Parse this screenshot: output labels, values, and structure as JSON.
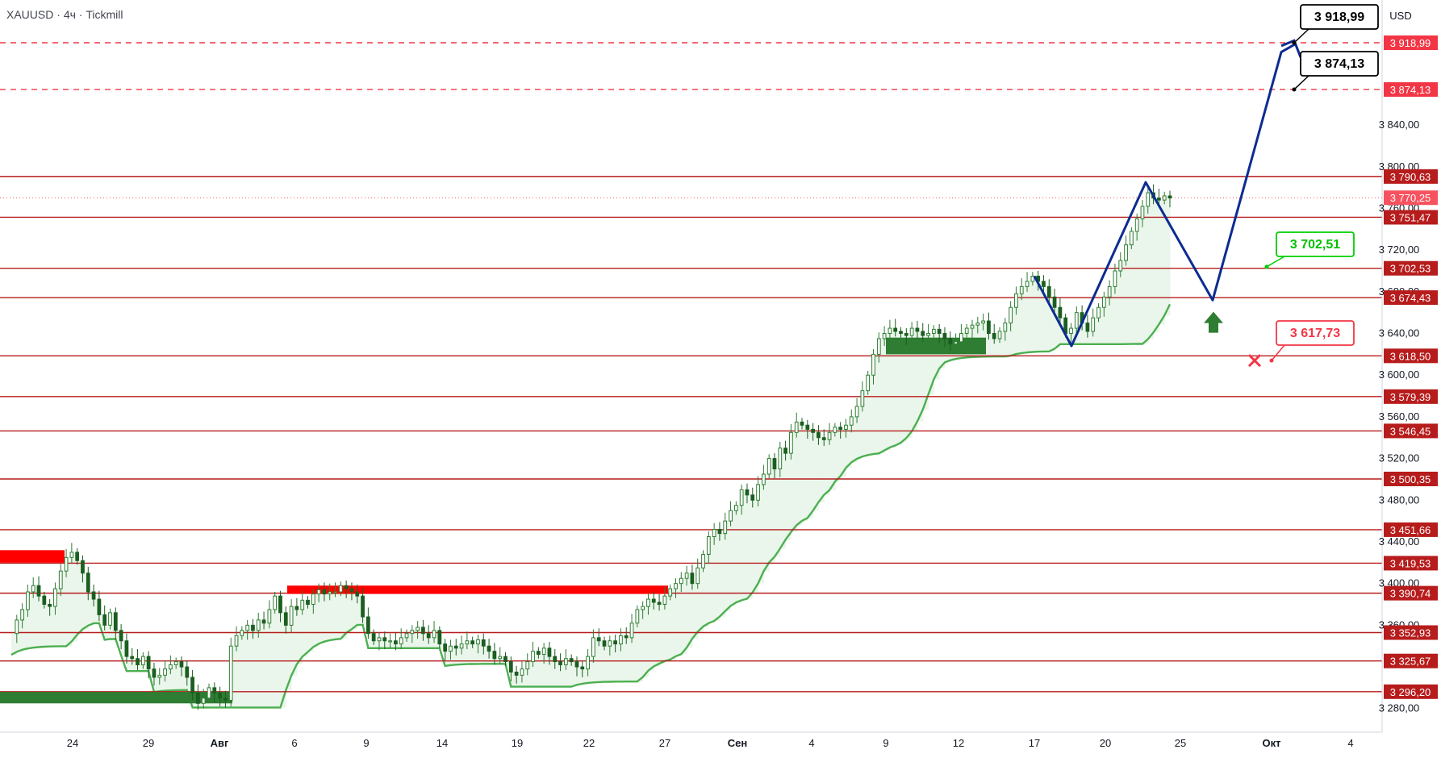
{
  "header": {
    "symbol": "XAUUSD",
    "sep1": "·",
    "timeframe": "4ч",
    "sep2": "·",
    "broker": "Tickmill"
  },
  "currency": "USD",
  "colors": {
    "level_line": "#b71c1c",
    "target_line": "#f23645",
    "candle": "#2e7d32",
    "candle_alt": "#1b5e20",
    "trail_up": "#4caf50",
    "trail_down": "#f23645",
    "zone_green": "#2e7d32",
    "zone_red": "#ff0000",
    "path": "#0d2c91",
    "buy_arrow": "#2e7d32",
    "stop_mark": "#f23645"
  },
  "chart_data": {
    "type": "line",
    "title": "",
    "ylim": [
      3262,
      3960
    ],
    "y_ticks": [
      "3 280,00",
      "3 360,00",
      "3 400,00",
      "3 440,00",
      "3 480,00",
      "3 520,00",
      "3 560,00",
      "3 600,00",
      "3 640,00",
      "3 680,00",
      "3 720,00",
      "3 760,00",
      "3 800,00",
      "3 840,00"
    ],
    "x_ticks": [
      "24",
      "29",
      "Авг",
      "6",
      "9",
      "14",
      "19",
      "22",
      "27",
      "Сен",
      "4",
      "9",
      "12",
      "17",
      "20",
      "25",
      "Окт",
      "4"
    ],
    "levels": [
      {
        "value": 3790.63,
        "label": "3 790,63"
      },
      {
        "value": 3751.47,
        "label": "3 751,47"
      },
      {
        "value": 3702.53,
        "label": "3 702,53"
      },
      {
        "value": 3674.43,
        "label": "3 674,43"
      },
      {
        "value": 3618.5,
        "label": "3 618,50"
      },
      {
        "value": 3579.39,
        "label": "3 579,39"
      },
      {
        "value": 3546.45,
        "label": "3 546,45"
      },
      {
        "value": 3500.35,
        "label": "3 500,35"
      },
      {
        "value": 3451.66,
        "label": "3 451,66"
      },
      {
        "value": 3419.53,
        "label": "3 419,53"
      },
      {
        "value": 3390.74,
        "label": "3 390,74"
      },
      {
        "value": 3352.93,
        "label": "3 352,93"
      },
      {
        "value": 3325.67,
        "label": "3 325,67"
      },
      {
        "value": 3296.2,
        "label": "3 296,20"
      }
    ],
    "targets": [
      {
        "value": 3918.99,
        "label": "3 918,99"
      },
      {
        "value": 3874.13,
        "label": "3 874,13"
      }
    ],
    "current_price": {
      "value": 3770.25,
      "label": "3 770,25"
    },
    "callouts": [
      {
        "name": "target-1",
        "label": "3 918,99"
      },
      {
        "name": "target-2",
        "label": "3 874,13"
      },
      {
        "name": "entry",
        "label": "3 702,51"
      },
      {
        "name": "stop",
        "label": "3 617,73"
      }
    ],
    "close_series": [
      3352,
      3365,
      3375,
      3392,
      3398,
      3388,
      3380,
      3378,
      3395,
      3412,
      3425,
      3430,
      3422,
      3410,
      3392,
      3385,
      3370,
      3360,
      3372,
      3355,
      3345,
      3330,
      3328,
      3322,
      3330,
      3318,
      3310,
      3312,
      3318,
      3322,
      3325,
      3320,
      3310,
      3295,
      3285,
      3290,
      3300,
      3295,
      3290,
      3288,
      3340,
      3350,
      3355,
      3360,
      3355,
      3365,
      3362,
      3375,
      3388,
      3372,
      3360,
      3378,
      3375,
      3384,
      3380,
      3390,
      3394,
      3390,
      3392,
      3392,
      3398,
      3395,
      3392,
      3388,
      3368,
      3352,
      3345,
      3348,
      3345,
      3345,
      3342,
      3348,
      3352,
      3355,
      3358,
      3352,
      3348,
      3355,
      3342,
      3335,
      3340,
      3338,
      3342,
      3345,
      3342,
      3346,
      3340,
      3335,
      3328,
      3330,
      3325,
      3315,
      3312,
      3318,
      3325,
      3335,
      3332,
      3338,
      3330,
      3325,
      3322,
      3328,
      3325,
      3320,
      3318,
      3330,
      3348,
      3345,
      3340,
      3345,
      3342,
      3350,
      3348,
      3362,
      3375,
      3378,
      3385,
      3382,
      3380,
      3388,
      3395,
      3400,
      3405,
      3410,
      3400,
      3415,
      3428,
      3445,
      3452,
      3448,
      3460,
      3470,
      3475,
      3490,
      3485,
      3480,
      3495,
      3505,
      3520,
      3510,
      3530,
      3525,
      3545,
      3555,
      3552,
      3548,
      3545,
      3540,
      3538,
      3545,
      3550,
      3548,
      3552,
      3560,
      3570,
      3585,
      3600,
      3620,
      3635,
      3640,
      3645,
      3642,
      3640,
      3638,
      3645,
      3642,
      3638,
      3640,
      3644,
      3640,
      3635,
      3630,
      3632,
      3640,
      3645,
      3648,
      3650,
      3652,
      3640,
      3635,
      3642,
      3650,
      3665,
      3678,
      3685,
      3690,
      3695,
      3690,
      3685,
      3675,
      3665,
      3655,
      3640,
      3645,
      3660,
      3650,
      3642,
      3655,
      3665,
      3675,
      3685,
      3700,
      3710,
      3725,
      3738,
      3750,
      3762,
      3775,
      3770,
      3768,
      3772,
      3770
    ]
  }
}
